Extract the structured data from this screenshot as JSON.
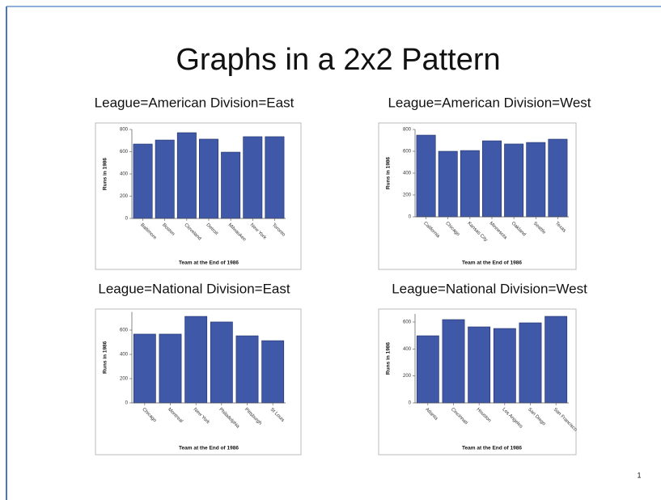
{
  "title": "Graphs in a 2x2 Pattern",
  "page_number": "1",
  "chart_data": [
    {
      "type": "bar",
      "title": "League=American Division=East",
      "x_label": "Team at the End of 1986",
      "y_label": "Runs in 1986",
      "categories": [
        "Baltimore",
        "Boston",
        "Cleveland",
        "Detroit",
        "Milwaukee",
        "New York",
        "Toronto"
      ],
      "values": [
        669,
        705,
        771,
        713,
        596,
        735,
        735
      ],
      "color": "#3f58a8",
      "ylim": [
        0,
        800
      ],
      "yticks": [
        0,
        200,
        400,
        600,
        800
      ]
    },
    {
      "type": "bar",
      "title": "League=American Division=West",
      "x_label": "Team at the End of 1986",
      "y_label": "Runs in 1986",
      "categories": [
        "California",
        "Chicago",
        "Kansas City",
        "Minnesota",
        "Oakland",
        "Seattle",
        "Texas"
      ],
      "values": [
        748,
        600,
        607,
        696,
        667,
        681,
        711
      ],
      "color": "#3f58a8",
      "ylim": [
        0,
        800
      ],
      "yticks": [
        0,
        200,
        400,
        600,
        800
      ]
    },
    {
      "type": "bar",
      "title": "League=National Division=East",
      "x_label": "Team at the End of 1986",
      "y_label": "Runs in 1986",
      "categories": [
        "Chicago",
        "Montreal",
        "New York",
        "Philadelphia",
        "Pittsburgh",
        "St Louis"
      ],
      "values": [
        567,
        567,
        713,
        667,
        553,
        513
      ],
      "color": "#3f58a8",
      "ylim": [
        0,
        750
      ],
      "yticks": [
        0,
        200,
        400,
        600
      ]
    },
    {
      "type": "bar",
      "title": "League=National Division=West",
      "x_label": "Team at the End of 1986",
      "y_label": "Runs in 1986",
      "categories": [
        "Atlanta",
        "Cincinnati",
        "Houston",
        "Los Angeles",
        "San Diego",
        "San Francisco"
      ],
      "values": [
        498,
        618,
        564,
        552,
        594,
        642
      ],
      "color": "#3f58a8",
      "ylim": [
        0,
        660
      ],
      "yticks": [
        0,
        200,
        400,
        600
      ]
    }
  ]
}
